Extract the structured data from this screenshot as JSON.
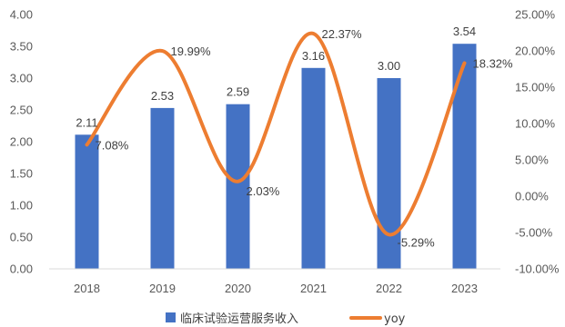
{
  "chart_data": {
    "type": "bar",
    "categories": [
      "2018",
      "2019",
      "2020",
      "2021",
      "2022",
      "2023"
    ],
    "series": [
      {
        "name": "临床试验运营服务收入",
        "type": "bar",
        "axis": "left",
        "color": "#4472C4",
        "values": [
          2.11,
          2.53,
          2.59,
          3.16,
          3.0,
          3.54
        ],
        "labels": [
          "2.11",
          "2.53",
          "2.59",
          "3.16",
          "3.00",
          "3.54"
        ]
      },
      {
        "name": "yoy",
        "type": "line",
        "axis": "right",
        "color": "#ED7D31",
        "smooth": true,
        "values": [
          7.08,
          19.99,
          2.03,
          22.37,
          -5.29,
          18.32
        ],
        "labels": [
          "7.08%",
          "19.99%",
          "2.03%",
          "22.37%",
          "-5.29%",
          "18.32%"
        ]
      }
    ],
    "y_left": {
      "lim": [
        0,
        4
      ],
      "ticks": [
        "0.00",
        "0.50",
        "1.00",
        "1.50",
        "2.00",
        "2.50",
        "3.00",
        "3.50",
        "4.00"
      ]
    },
    "y_right": {
      "lim": [
        -10,
        25
      ],
      "ticks": [
        "-10.00%",
        "-5.00%",
        "0.00%",
        "5.00%",
        "10.00%",
        "15.00%",
        "20.00%",
        "25.00%"
      ]
    },
    "grid": false,
    "legend": "bottom"
  }
}
